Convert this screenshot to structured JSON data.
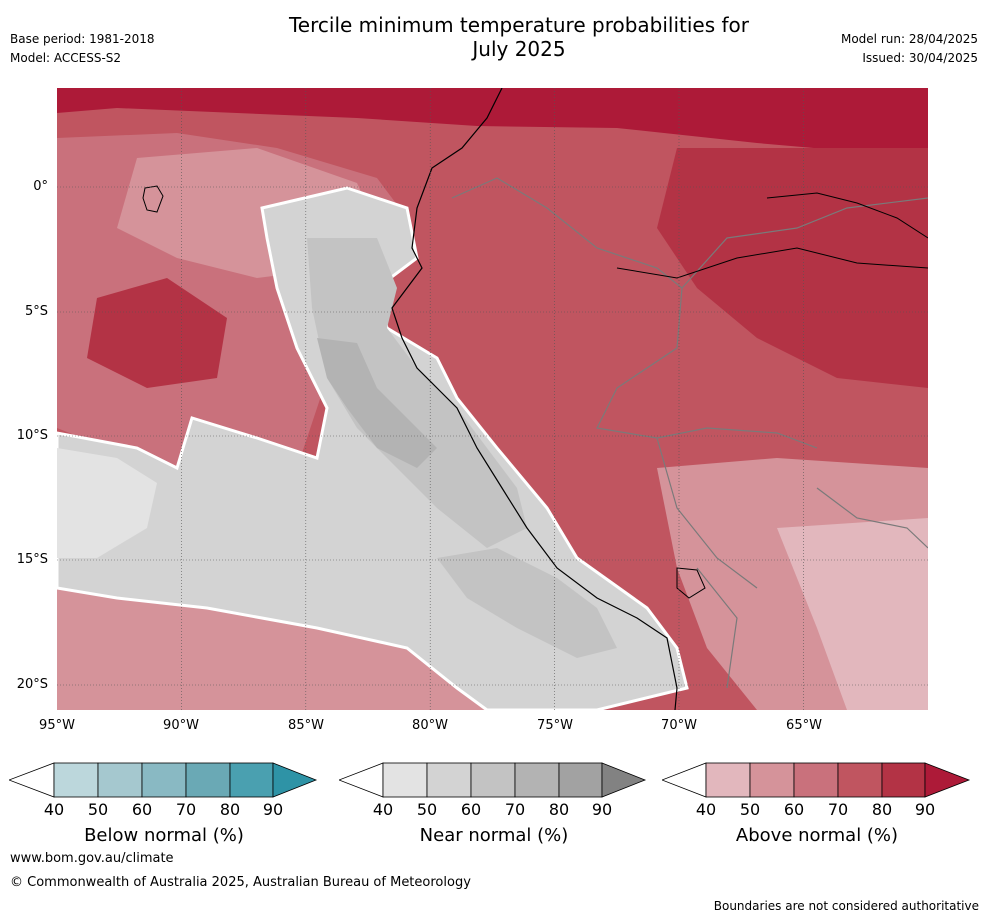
{
  "header": {
    "base_period": "Base period: 1981-2018",
    "model": "Model: ACCESS-S2",
    "title_line1": "Tercile minimum temperature probabilities for",
    "title_line2": "July 2025",
    "model_run": "Model run: 28/04/2025",
    "issued": "Issued: 30/04/2025"
  },
  "map": {
    "lat_ticks": [
      "0°",
      "5°S",
      "10°S",
      "15°S",
      "20°S"
    ],
    "lon_ticks": [
      "95°W",
      "90°W",
      "85°W",
      "80°W",
      "75°W",
      "70°W",
      "65°W"
    ]
  },
  "colorbars": [
    {
      "label": "Below normal (%)",
      "ticks": [
        "40",
        "50",
        "60",
        "70",
        "80",
        "90"
      ],
      "colors": [
        "#ffffff",
        "#bcd7dc",
        "#a5c8cf",
        "#89b9c3",
        "#6aa9b5",
        "#4aa0b0",
        "#2e93a6"
      ]
    },
    {
      "label": "Near normal (%)",
      "ticks": [
        "40",
        "50",
        "60",
        "70",
        "80",
        "90"
      ],
      "colors": [
        "#ffffff",
        "#e3e3e3",
        "#d3d3d3",
        "#c3c3c3",
        "#b3b3b3",
        "#a2a2a2",
        "#828282"
      ]
    },
    {
      "label": "Above normal (%)",
      "ticks": [
        "40",
        "50",
        "60",
        "70",
        "80",
        "90"
      ],
      "colors": [
        "#ffffff",
        "#e2b7bd",
        "#d5939a",
        "#c9717c",
        "#c05560",
        "#b33345",
        "#ad1a38"
      ]
    }
  ],
  "footer": {
    "url": "www.bom.gov.au/climate",
    "copyright": "© Commonwealth of Australia 2025, Australian Bureau of Meteorology",
    "disclaimer": "Boundaries are not considered authoritative"
  }
}
